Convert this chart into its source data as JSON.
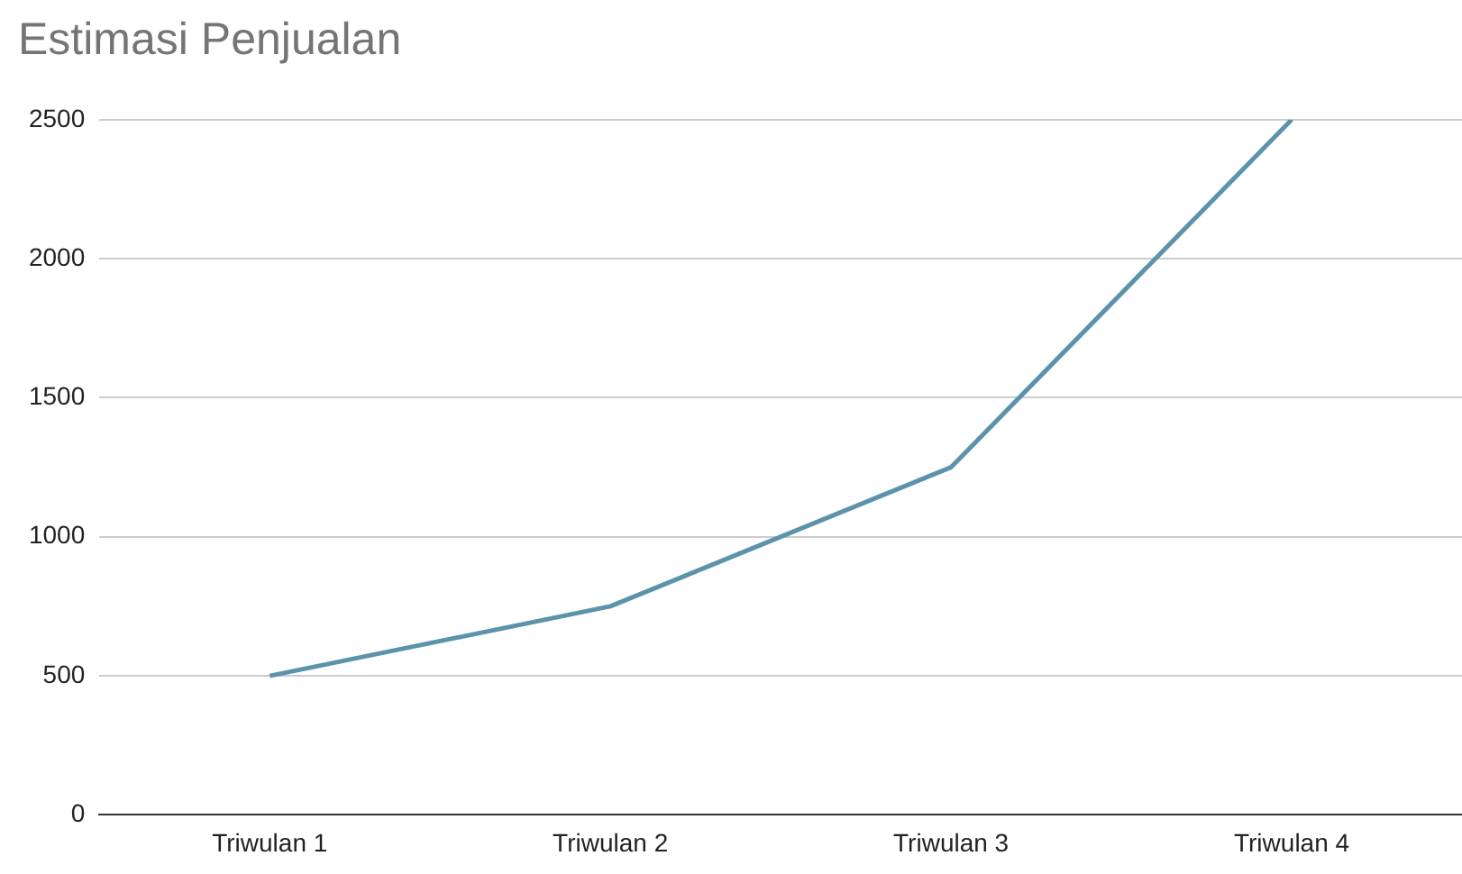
{
  "chart_data": {
    "type": "line",
    "title": "Estimasi Penjualan",
    "categories": [
      "Triwulan 1",
      "Triwulan 2",
      "Triwulan 3",
      "Triwulan 4"
    ],
    "series": [
      {
        "color": "#5b93ab",
        "values": [
          500,
          750,
          1250,
          2500
        ]
      }
    ],
    "ylim": [
      0,
      2500
    ],
    "yticks": [
      0,
      500,
      1000,
      1500,
      2000,
      2500
    ],
    "grid": "y",
    "legend": false,
    "marker": "none"
  }
}
